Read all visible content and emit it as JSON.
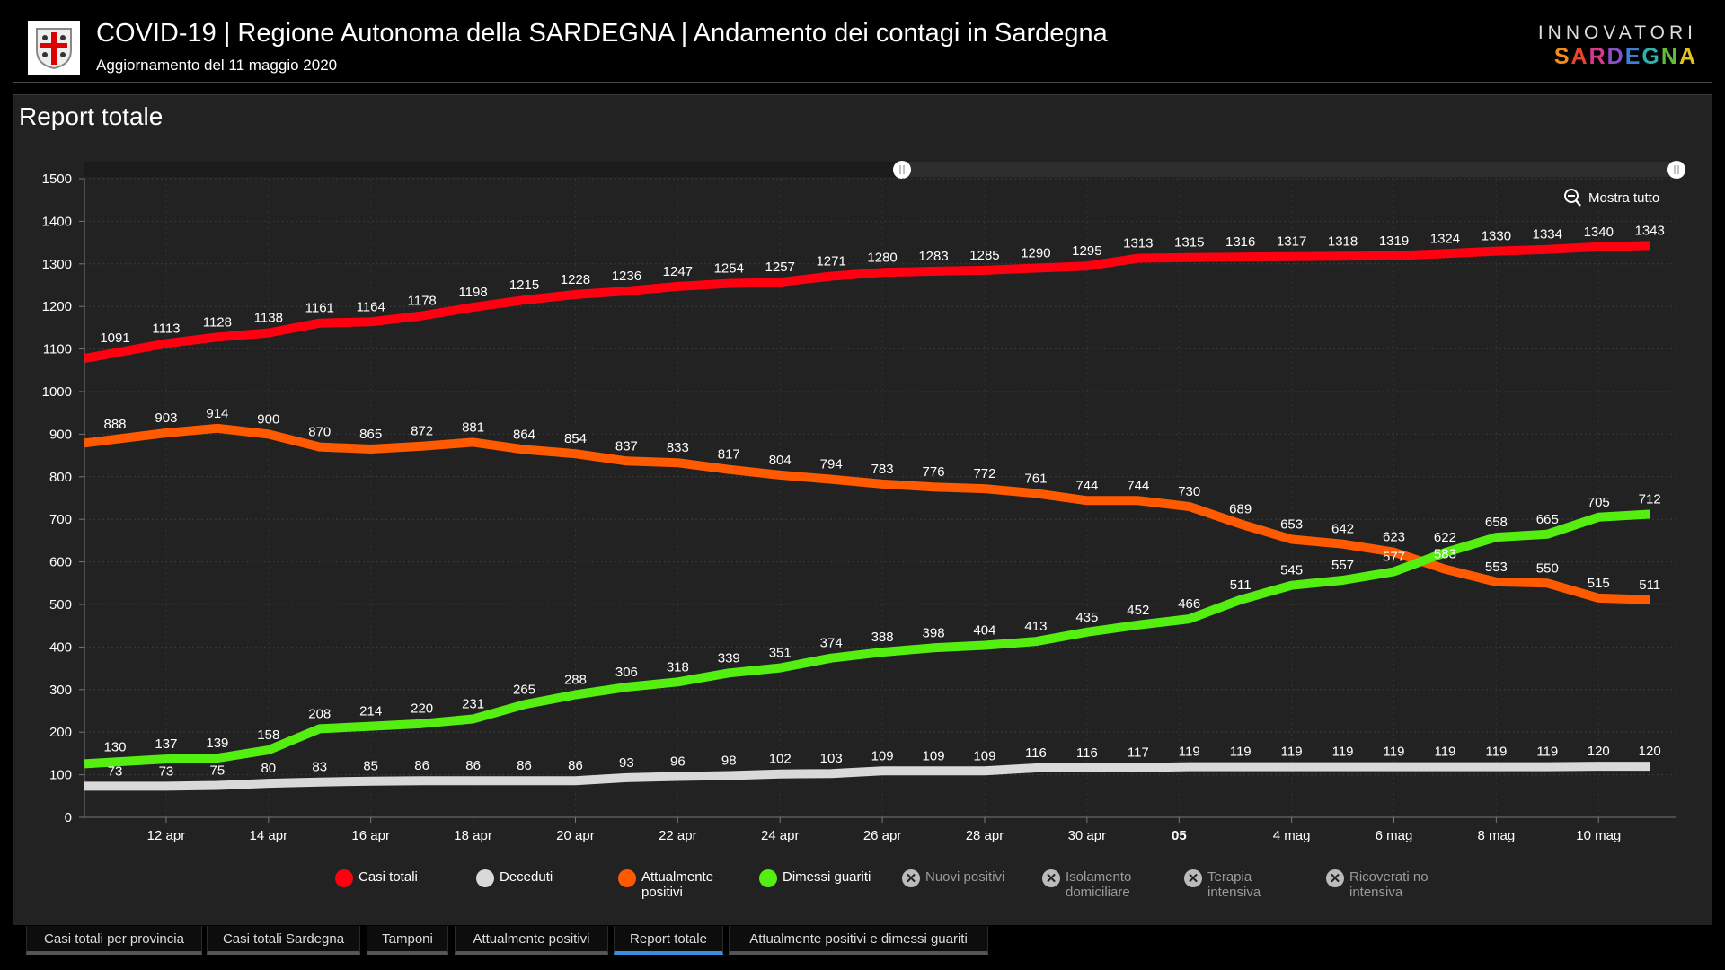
{
  "header": {
    "title": "COVID-19 | Regione Autonoma della SARDEGNA | Andamento dei contagi in Sardegna",
    "subtitle": "Aggiornamento del 11 maggio 2020",
    "brand_top": "INNOVATORI",
    "brand_bottom": "SARDEGNA"
  },
  "panel": {
    "title": "Report totale",
    "zoom_reset_label": "Mostra tutto"
  },
  "legend": [
    {
      "label": "Casi totali",
      "color": "#ff0010",
      "active": true
    },
    {
      "label": "Deceduti",
      "color": "#d9d9d9",
      "active": true
    },
    {
      "label": "Attualmente positivi",
      "color": "#ff5a00",
      "active": true
    },
    {
      "label": "Dimessi guariti",
      "color": "#55ee11",
      "active": true
    },
    {
      "label": "Nuovi positivi",
      "active": false
    },
    {
      "label": "Isolamento domiciliare",
      "active": false
    },
    {
      "label": "Terapia intensiva",
      "active": false
    },
    {
      "label": "Ricoverati no intensiva",
      "active": false
    }
  ],
  "tabs": [
    {
      "label": "Casi totali per provincia",
      "active": false
    },
    {
      "label": "Casi totali Sardegna",
      "active": false
    },
    {
      "label": "Tamponi",
      "active": false
    },
    {
      "label": "Attualmente positivi",
      "active": false
    },
    {
      "label": "Report totale",
      "active": true
    },
    {
      "label": "Attualmente positivi e dimessi guariti",
      "active": false
    }
  ],
  "chart_data": {
    "type": "line",
    "title": "Report totale",
    "x_start": "2020-04-11",
    "x": [
      0,
      1,
      2,
      3,
      4,
      5,
      6,
      7,
      8,
      9,
      10,
      11,
      12,
      13,
      14,
      15,
      16,
      17,
      18,
      19,
      20,
      21,
      22,
      23,
      24,
      25,
      26,
      27,
      28,
      29,
      30
    ],
    "x_ticks": [
      {
        "day": 1,
        "label": "12 apr",
        "bold": false
      },
      {
        "day": 3,
        "label": "14 apr",
        "bold": false
      },
      {
        "day": 5,
        "label": "16 apr",
        "bold": false
      },
      {
        "day": 7,
        "label": "18 apr",
        "bold": false
      },
      {
        "day": 9,
        "label": "20 apr",
        "bold": false
      },
      {
        "day": 11,
        "label": "22 apr",
        "bold": false
      },
      {
        "day": 13,
        "label": "24 apr",
        "bold": false
      },
      {
        "day": 15,
        "label": "26 apr",
        "bold": false
      },
      {
        "day": 17,
        "label": "28 apr",
        "bold": false
      },
      {
        "day": 19,
        "label": "30 apr",
        "bold": false
      },
      {
        "day": 20.8,
        "label": "05",
        "bold": true
      },
      {
        "day": 23,
        "label": "4 mag",
        "bold": false
      },
      {
        "day": 25,
        "label": "6 mag",
        "bold": false
      },
      {
        "day": 27,
        "label": "8 mag",
        "bold": false
      },
      {
        "day": 29,
        "label": "10 mag",
        "bold": false
      }
    ],
    "ylim": [
      0,
      1500
    ],
    "y_ticks": [
      0,
      100,
      200,
      300,
      400,
      500,
      600,
      700,
      800,
      900,
      1000,
      1100,
      1200,
      1300,
      1400,
      1500
    ],
    "grid": true,
    "legend_position": "bottom",
    "series": [
      {
        "name": "Casi totali",
        "color": "#ff0010",
        "values": [
          1091,
          1113,
          1128,
          1138,
          1161,
          1164,
          1178,
          1198,
          1215,
          1228,
          1236,
          1247,
          1254,
          1257,
          1271,
          1280,
          1283,
          1285,
          1290,
          1295,
          1313,
          1315,
          1316,
          1317,
          1318,
          1319,
          1324,
          1330,
          1334,
          1340,
          1343
        ]
      },
      {
        "name": "Attualmente positivi",
        "color": "#ff5a00",
        "values": [
          888,
          903,
          914,
          900,
          870,
          865,
          872,
          881,
          864,
          854,
          837,
          833,
          817,
          804,
          794,
          783,
          776,
          772,
          761,
          744,
          744,
          730,
          689,
          653,
          642,
          623,
          583,
          553,
          550,
          515,
          511
        ]
      },
      {
        "name": "Dimessi guariti",
        "color": "#55ee11",
        "values": [
          130,
          137,
          139,
          158,
          208,
          214,
          220,
          231,
          265,
          288,
          306,
          318,
          339,
          351,
          374,
          388,
          398,
          404,
          413,
          435,
          452,
          466,
          511,
          545,
          557,
          577,
          622,
          658,
          665,
          705,
          712
        ]
      },
      {
        "name": "Deceduti",
        "color": "#d9d9d9",
        "values": [
          73,
          73,
          75,
          80,
          83,
          85,
          86,
          86,
          86,
          86,
          93,
          96,
          98,
          102,
          103,
          109,
          109,
          109,
          116,
          116,
          117,
          119,
          119,
          119,
          119,
          119,
          119,
          119,
          119,
          120,
          120
        ]
      }
    ]
  }
}
